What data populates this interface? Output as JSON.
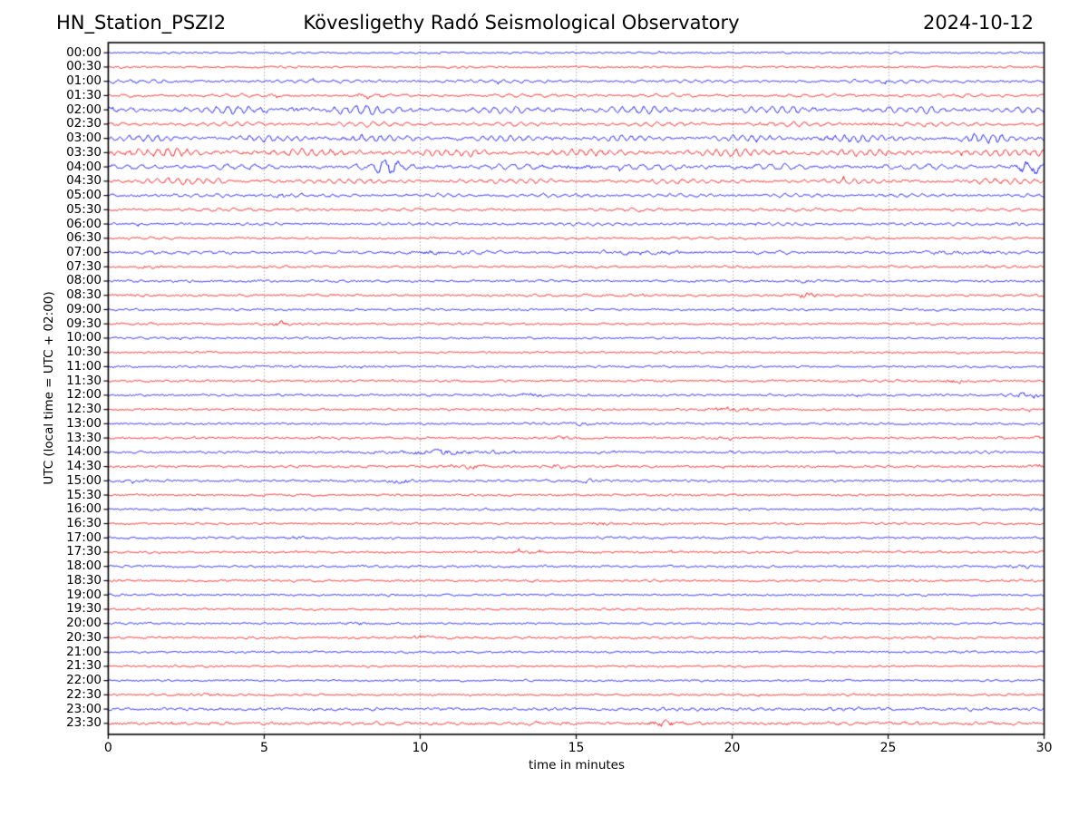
{
  "chart_data": {
    "type": "helicorder",
    "station": "HN_Station_PSZI2",
    "title": "Kövesligethy Radó Seismological Observatory",
    "date": "2024-10-12",
    "xlabel": "time in minutes",
    "ylabel": "UTC (local time = UTC + 02:00)",
    "x_ticks": [
      0,
      5,
      10,
      15,
      20,
      25,
      30
    ],
    "x_range": [
      0,
      30
    ],
    "minutes_per_line": 30,
    "grid": "vertical-dotted",
    "grid_color": "#888888",
    "axis_color": "#000000",
    "trace_colors": {
      "blue": "#0000ff",
      "red": "#ff0000"
    },
    "rows": [
      {
        "time": "00:00",
        "color": "blue",
        "amp": 0.7,
        "smooth": 0.25,
        "events": []
      },
      {
        "time": "00:30",
        "color": "red",
        "amp": 0.8,
        "smooth": 0.25,
        "events": []
      },
      {
        "time": "01:00",
        "color": "blue",
        "amp": 1.2,
        "smooth": 0.55,
        "events": []
      },
      {
        "time": "01:30",
        "color": "red",
        "amp": 1.2,
        "smooth": 0.55,
        "events": [
          {
            "t": 8.3,
            "dur": 0.6,
            "amp": 2.0
          }
        ]
      },
      {
        "time": "02:00",
        "color": "blue",
        "amp": 2.0,
        "smooth": 0.75,
        "events": [
          {
            "t": 5.5,
            "dur": 2.5,
            "amp": 1.4
          },
          {
            "t": 8.2,
            "dur": 1.5,
            "amp": 1.3
          },
          {
            "t": 17.8,
            "dur": 1.0,
            "amp": 1.3
          }
        ]
      },
      {
        "time": "02:30",
        "color": "red",
        "amp": 1.4,
        "smooth": 0.7,
        "events": [
          {
            "t": 24.8,
            "dur": 1.6,
            "amp": 1.6
          },
          {
            "t": 20.0,
            "dur": 0.8,
            "amp": 1.3
          }
        ]
      },
      {
        "time": "03:00",
        "color": "blue",
        "amp": 1.8,
        "smooth": 0.75,
        "events": [
          {
            "t": 7.8,
            "dur": 2.2,
            "amp": 1.4
          },
          {
            "t": 23.4,
            "dur": 1.4,
            "amp": 1.7
          },
          {
            "t": 27.8,
            "dur": 2.2,
            "amp": 1.5
          }
        ]
      },
      {
        "time": "03:30",
        "color": "red",
        "amp": 2.2,
        "smooth": 0.75,
        "events": [
          {
            "t": 0.8,
            "dur": 2.0,
            "amp": 1.3
          }
        ]
      },
      {
        "time": "04:00",
        "color": "blue",
        "amp": 1.7,
        "smooth": 0.7,
        "events": [
          {
            "t": 9.0,
            "dur": 0.7,
            "amp": 3.2
          },
          {
            "t": 15.1,
            "dur": 0.9,
            "amp": 1.8
          },
          {
            "t": 20.6,
            "dur": 0.7,
            "amp": 1.5
          },
          {
            "t": 29.6,
            "dur": 0.7,
            "amp": 3.4
          }
        ]
      },
      {
        "time": "04:30",
        "color": "red",
        "amp": 1.5,
        "smooth": 0.7,
        "events": [
          {
            "t": 2.5,
            "dur": 3.5,
            "amp": 1.3
          },
          {
            "t": 28.2,
            "dur": 1.0,
            "amp": 1.4
          }
        ]
      },
      {
        "time": "05:00",
        "color": "blue",
        "amp": 1.2,
        "smooth": 0.6,
        "events": [
          {
            "t": 5.4,
            "dur": 1.2,
            "amp": 1.7
          }
        ]
      },
      {
        "time": "05:30",
        "color": "red",
        "amp": 1.1,
        "smooth": 0.5,
        "events": []
      },
      {
        "time": "06:00",
        "color": "blue",
        "amp": 1.0,
        "smooth": 0.45,
        "events": [
          {
            "t": 8.9,
            "dur": 0.4,
            "amp": 1.7
          },
          {
            "t": 29.2,
            "dur": 0.4,
            "amp": 2.2
          }
        ]
      },
      {
        "time": "06:30",
        "color": "red",
        "amp": 0.9,
        "smooth": 0.35,
        "events": []
      },
      {
        "time": "07:00",
        "color": "blue",
        "amp": 1.2,
        "smooth": 0.45,
        "events": [
          {
            "t": 10.3,
            "dur": 1.6,
            "amp": 1.6
          },
          {
            "t": 17.2,
            "dur": 2.0,
            "amp": 1.5
          },
          {
            "t": 27.6,
            "dur": 1.5,
            "amp": 1.5
          }
        ]
      },
      {
        "time": "07:30",
        "color": "red",
        "amp": 1.0,
        "smooth": 0.35,
        "events": [
          {
            "t": 1.3,
            "dur": 1.0,
            "amp": 1.8
          },
          {
            "t": 28.3,
            "dur": 0.5,
            "amp": 1.7
          }
        ]
      },
      {
        "time": "08:00",
        "color": "blue",
        "amp": 0.9,
        "smooth": 0.25,
        "events": [
          {
            "t": 4.8,
            "dur": 0.5,
            "amp": 1.4
          },
          {
            "t": 22.4,
            "dur": 0.5,
            "amp": 1.9
          }
        ]
      },
      {
        "time": "08:30",
        "color": "red",
        "amp": 1.0,
        "smooth": 0.25,
        "events": [
          {
            "t": 17.0,
            "dur": 1.2,
            "amp": 1.4
          },
          {
            "t": 22.4,
            "dur": 0.5,
            "amp": 2.8
          }
        ]
      },
      {
        "time": "09:00",
        "color": "blue",
        "amp": 0.9,
        "smooth": 0.25,
        "events": [
          {
            "t": 7.6,
            "dur": 0.5,
            "amp": 1.6
          }
        ]
      },
      {
        "time": "09:30",
        "color": "red",
        "amp": 0.9,
        "smooth": 0.25,
        "events": [
          {
            "t": 5.5,
            "dur": 0.4,
            "amp": 3.0
          }
        ]
      },
      {
        "time": "10:00",
        "color": "blue",
        "amp": 0.8,
        "smooth": 0.25,
        "events": [
          {
            "t": 2.3,
            "dur": 0.4,
            "amp": 1.6
          }
        ]
      },
      {
        "time": "10:30",
        "color": "red",
        "amp": 0.8,
        "smooth": 0.2,
        "events": []
      },
      {
        "time": "11:00",
        "color": "blue",
        "amp": 0.9,
        "smooth": 0.2,
        "events": []
      },
      {
        "time": "11:30",
        "color": "red",
        "amp": 0.9,
        "smooth": 0.2,
        "events": [
          {
            "t": 27.2,
            "dur": 0.6,
            "amp": 2.2
          }
        ]
      },
      {
        "time": "12:00",
        "color": "blue",
        "amp": 0.9,
        "smooth": 0.2,
        "events": [
          {
            "t": 13.6,
            "dur": 0.8,
            "amp": 2.0
          },
          {
            "t": 29.5,
            "dur": 0.7,
            "amp": 3.0
          }
        ]
      },
      {
        "time": "12:30",
        "color": "red",
        "amp": 0.9,
        "smooth": 0.2,
        "events": [
          {
            "t": 19.9,
            "dur": 1.1,
            "amp": 2.6
          }
        ]
      },
      {
        "time": "13:00",
        "color": "blue",
        "amp": 0.9,
        "smooth": 0.2,
        "events": [
          {
            "t": 15.2,
            "dur": 0.6,
            "amp": 1.6
          }
        ]
      },
      {
        "time": "13:30",
        "color": "red",
        "amp": 0.9,
        "smooth": 0.2,
        "events": [
          {
            "t": 9.7,
            "dur": 0.4,
            "amp": 1.7
          },
          {
            "t": 14.6,
            "dur": 0.7,
            "amp": 1.8
          },
          {
            "t": 19.5,
            "dur": 0.4,
            "amp": 1.6
          },
          {
            "t": 29.8,
            "dur": 0.4,
            "amp": 1.8
          }
        ]
      },
      {
        "time": "14:00",
        "color": "blue",
        "amp": 1.0,
        "smooth": 0.2,
        "events": [
          {
            "t": 8.3,
            "dur": 0.5,
            "amp": 1.6
          },
          {
            "t": 10.3,
            "dur": 1.6,
            "amp": 2.6
          },
          {
            "t": 12.3,
            "dur": 1.4,
            "amp": 1.5
          }
        ]
      },
      {
        "time": "14:30",
        "color": "red",
        "amp": 1.0,
        "smooth": 0.2,
        "events": [
          {
            "t": 11.3,
            "dur": 0.9,
            "amp": 2.4
          },
          {
            "t": 14.6,
            "dur": 0.7,
            "amp": 1.9
          },
          {
            "t": 29.8,
            "dur": 0.4,
            "amp": 1.9
          }
        ]
      },
      {
        "time": "15:00",
        "color": "blue",
        "amp": 1.0,
        "smooth": 0.2,
        "events": [
          {
            "t": 0.3,
            "dur": 0.3,
            "amp": 1.6
          },
          {
            "t": 9.3,
            "dur": 0.6,
            "amp": 2.2
          },
          {
            "t": 15.3,
            "dur": 0.6,
            "amp": 1.9
          }
        ]
      },
      {
        "time": "15:30",
        "color": "red",
        "amp": 0.9,
        "smooth": 0.2,
        "events": []
      },
      {
        "time": "16:00",
        "color": "blue",
        "amp": 0.9,
        "smooth": 0.2,
        "events": [
          {
            "t": 2.9,
            "dur": 0.5,
            "amp": 1.8
          },
          {
            "t": 29.7,
            "dur": 0.4,
            "amp": 1.8
          }
        ]
      },
      {
        "time": "16:30",
        "color": "red",
        "amp": 0.9,
        "smooth": 0.2,
        "events": [
          {
            "t": 15.7,
            "dur": 0.8,
            "amp": 2.2
          }
        ]
      },
      {
        "time": "17:00",
        "color": "blue",
        "amp": 0.9,
        "smooth": 0.2,
        "events": [
          {
            "t": 6.2,
            "dur": 0.9,
            "amp": 1.7
          }
        ]
      },
      {
        "time": "17:30",
        "color": "red",
        "amp": 0.9,
        "smooth": 0.2,
        "events": [
          {
            "t": 13.3,
            "dur": 0.9,
            "amp": 1.7
          }
        ]
      },
      {
        "time": "18:00",
        "color": "blue",
        "amp": 0.9,
        "smooth": 0.2,
        "events": [
          {
            "t": 29.3,
            "dur": 0.8,
            "amp": 1.8
          }
        ]
      },
      {
        "time": "18:30",
        "color": "red",
        "amp": 0.9,
        "smooth": 0.2,
        "events": [
          {
            "t": 0.3,
            "dur": 0.4,
            "amp": 1.6
          }
        ]
      },
      {
        "time": "19:00",
        "color": "blue",
        "amp": 0.8,
        "smooth": 0.2,
        "events": [
          {
            "t": 9.0,
            "dur": 0.5,
            "amp": 1.7
          }
        ]
      },
      {
        "time": "19:30",
        "color": "red",
        "amp": 0.8,
        "smooth": 0.2,
        "events": []
      },
      {
        "time": "20:00",
        "color": "blue",
        "amp": 0.8,
        "smooth": 0.2,
        "events": [
          {
            "t": 7.9,
            "dur": 0.9,
            "amp": 1.9
          }
        ]
      },
      {
        "time": "20:30",
        "color": "red",
        "amp": 0.9,
        "smooth": 0.2,
        "events": [
          {
            "t": 10.0,
            "dur": 1.0,
            "amp": 2.0
          }
        ]
      },
      {
        "time": "21:00",
        "color": "blue",
        "amp": 0.8,
        "smooth": 0.2,
        "events": [
          {
            "t": 27.1,
            "dur": 0.5,
            "amp": 1.7
          }
        ]
      },
      {
        "time": "21:30",
        "color": "red",
        "amp": 0.8,
        "smooth": 0.2,
        "events": []
      },
      {
        "time": "22:00",
        "color": "blue",
        "amp": 0.8,
        "smooth": 0.2,
        "events": []
      },
      {
        "time": "22:30",
        "color": "red",
        "amp": 0.9,
        "smooth": 0.2,
        "events": [
          {
            "t": 3.1,
            "dur": 0.7,
            "amp": 1.6
          }
        ]
      },
      {
        "time": "23:00",
        "color": "blue",
        "amp": 1.2,
        "smooth": 0.3,
        "events": []
      },
      {
        "time": "23:30",
        "color": "red",
        "amp": 1.3,
        "smooth": 0.3,
        "events": [
          {
            "t": 17.8,
            "dur": 0.7,
            "amp": 2.2
          }
        ]
      }
    ]
  }
}
